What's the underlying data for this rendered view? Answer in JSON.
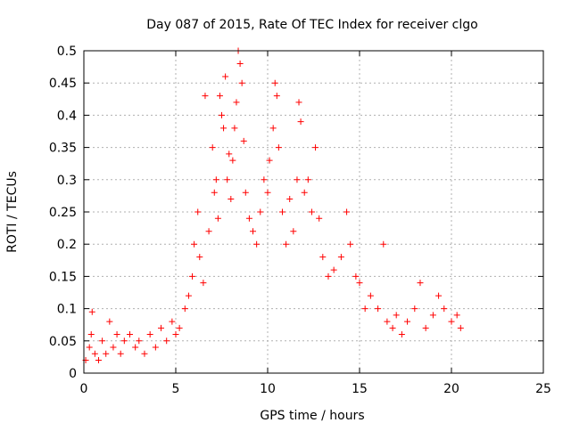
{
  "chart_data": {
    "type": "scatter",
    "title": "Day 087 of 2015, Rate Of TEC Index for receiver clgo",
    "xlabel": "GPS time / hours",
    "ylabel": "ROTI / TECUs",
    "xlim": [
      0,
      25
    ],
    "ylim": [
      0,
      0.5
    ],
    "x_ticks": [
      0,
      5,
      10,
      15,
      20,
      25
    ],
    "y_ticks": [
      0,
      0.05,
      0.1,
      0.15,
      0.2,
      0.25,
      0.3,
      0.35,
      0.4,
      0.45,
      0.5
    ],
    "grid": true,
    "marker": "+",
    "series": [
      {
        "name": "",
        "color": "#ff0000",
        "points": [
          [
            0.1,
            0.02
          ],
          [
            0.3,
            0.04
          ],
          [
            0.4,
            0.06
          ],
          [
            0.45,
            0.095
          ],
          [
            0.6,
            0.03
          ],
          [
            0.8,
            0.02
          ],
          [
            1.0,
            0.05
          ],
          [
            1.2,
            0.03
          ],
          [
            1.4,
            0.08
          ],
          [
            1.6,
            0.04
          ],
          [
            1.8,
            0.06
          ],
          [
            2.0,
            0.03
          ],
          [
            2.2,
            0.05
          ],
          [
            2.5,
            0.06
          ],
          [
            2.8,
            0.04
          ],
          [
            3.0,
            0.05
          ],
          [
            3.3,
            0.03
          ],
          [
            3.6,
            0.06
          ],
          [
            3.9,
            0.04
          ],
          [
            4.2,
            0.07
          ],
          [
            4.5,
            0.05
          ],
          [
            4.8,
            0.08
          ],
          [
            5.0,
            0.06
          ],
          [
            5.2,
            0.07
          ],
          [
            5.5,
            0.1
          ],
          [
            5.7,
            0.12
          ],
          [
            5.9,
            0.15
          ],
          [
            6.0,
            0.2
          ],
          [
            6.2,
            0.25
          ],
          [
            6.3,
            0.18
          ],
          [
            6.5,
            0.14
          ],
          [
            6.6,
            0.43
          ],
          [
            6.8,
            0.22
          ],
          [
            7.0,
            0.35
          ],
          [
            7.1,
            0.28
          ],
          [
            7.2,
            0.3
          ],
          [
            7.3,
            0.24
          ],
          [
            7.4,
            0.43
          ],
          [
            7.5,
            0.4
          ],
          [
            7.6,
            0.38
          ],
          [
            7.7,
            0.46
          ],
          [
            7.8,
            0.3
          ],
          [
            7.9,
            0.34
          ],
          [
            8.0,
            0.27
          ],
          [
            8.1,
            0.33
          ],
          [
            8.2,
            0.38
          ],
          [
            8.3,
            0.42
          ],
          [
            8.4,
            0.5
          ],
          [
            8.5,
            0.48
          ],
          [
            8.6,
            0.45
          ],
          [
            8.7,
            0.36
          ],
          [
            8.8,
            0.28
          ],
          [
            9.0,
            0.24
          ],
          [
            9.2,
            0.22
          ],
          [
            9.4,
            0.2
          ],
          [
            9.6,
            0.25
          ],
          [
            9.8,
            0.3
          ],
          [
            10.0,
            0.28
          ],
          [
            10.1,
            0.33
          ],
          [
            10.3,
            0.38
          ],
          [
            10.4,
            0.45
          ],
          [
            10.5,
            0.43
          ],
          [
            10.6,
            0.35
          ],
          [
            10.8,
            0.25
          ],
          [
            11.0,
            0.2
          ],
          [
            11.2,
            0.27
          ],
          [
            11.4,
            0.22
          ],
          [
            11.6,
            0.3
          ],
          [
            11.7,
            0.42
          ],
          [
            11.8,
            0.39
          ],
          [
            12.0,
            0.28
          ],
          [
            12.2,
            0.3
          ],
          [
            12.4,
            0.25
          ],
          [
            12.6,
            0.35
          ],
          [
            12.8,
            0.24
          ],
          [
            13.0,
            0.18
          ],
          [
            13.3,
            0.15
          ],
          [
            13.6,
            0.16
          ],
          [
            14.0,
            0.18
          ],
          [
            14.3,
            0.25
          ],
          [
            14.5,
            0.2
          ],
          [
            14.8,
            0.15
          ],
          [
            15.0,
            0.14
          ],
          [
            15.3,
            0.1
          ],
          [
            15.6,
            0.12
          ],
          [
            16.0,
            0.1
          ],
          [
            16.3,
            0.2
          ],
          [
            16.5,
            0.08
          ],
          [
            16.8,
            0.07
          ],
          [
            17.0,
            0.09
          ],
          [
            17.3,
            0.06
          ],
          [
            17.6,
            0.08
          ],
          [
            18.0,
            0.1
          ],
          [
            18.3,
            0.14
          ],
          [
            18.6,
            0.07
          ],
          [
            19.0,
            0.09
          ],
          [
            19.3,
            0.12
          ],
          [
            19.6,
            0.1
          ],
          [
            20.0,
            0.08
          ],
          [
            20.3,
            0.09
          ],
          [
            20.5,
            0.07
          ]
        ]
      }
    ]
  }
}
